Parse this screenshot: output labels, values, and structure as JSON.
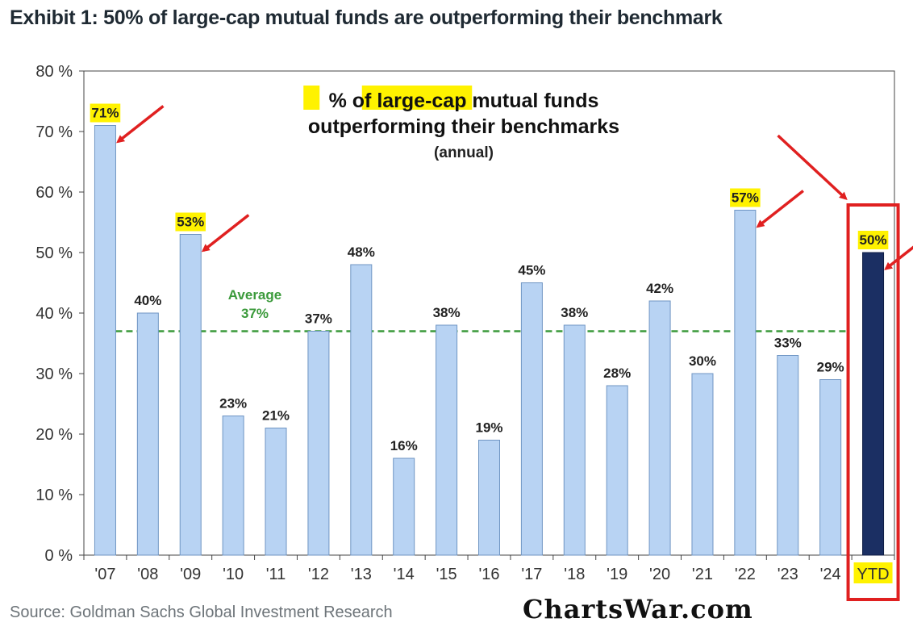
{
  "header": {
    "title": "Exhibit 1: 50% of large-cap mutual funds are outperforming their benchmark"
  },
  "footer": {
    "source": "Source: Goldman Sachs Global Investment Research",
    "watermark": "ChartsWar.com"
  },
  "chart_data": {
    "type": "bar",
    "title_lines": [
      "% of large-cap mutual funds",
      "outperforming their benchmarks"
    ],
    "subtitle": "(annual)",
    "categories": [
      "'07",
      "'08",
      "'09",
      "'10",
      "'11",
      "'12",
      "'13",
      "'14",
      "'15",
      "'16",
      "'17",
      "'18",
      "'19",
      "'20",
      "'21",
      "'22",
      "'23",
      "'24",
      "YTD"
    ],
    "values": [
      71,
      40,
      53,
      23,
      21,
      37,
      48,
      16,
      38,
      19,
      45,
      38,
      28,
      42,
      30,
      57,
      33,
      29,
      50
    ],
    "data_labels": [
      "71%",
      "40%",
      "53%",
      "23%",
      "21%",
      "37%",
      "48%",
      "16%",
      "38%",
      "19%",
      "45%",
      "38%",
      "28%",
      "42%",
      "30%",
      "57%",
      "33%",
      "29%",
      "50%"
    ],
    "highlighted_labels": [
      0,
      2,
      15,
      18
    ],
    "ylim": [
      0,
      80
    ],
    "yticks": [
      0,
      10,
      20,
      30,
      40,
      50,
      60,
      70,
      80
    ],
    "ytick_labels": [
      "0 %",
      "10 %",
      "20 %",
      "30 %",
      "40 %",
      "50 %",
      "60 %",
      "70 %",
      "80 %"
    ],
    "average": {
      "value": 37,
      "label_line1": "Average",
      "label_line2": "37%",
      "color": "#3b9a3b"
    },
    "arrows_on": [
      0,
      2,
      15,
      18
    ],
    "colors": {
      "bar": "#b8d3f3",
      "bar_edge": "#6f95c3",
      "ytd_bar": "#1b2f63",
      "highlight": "#fff200",
      "arrow": "#e02020",
      "box": "#e02020"
    }
  }
}
